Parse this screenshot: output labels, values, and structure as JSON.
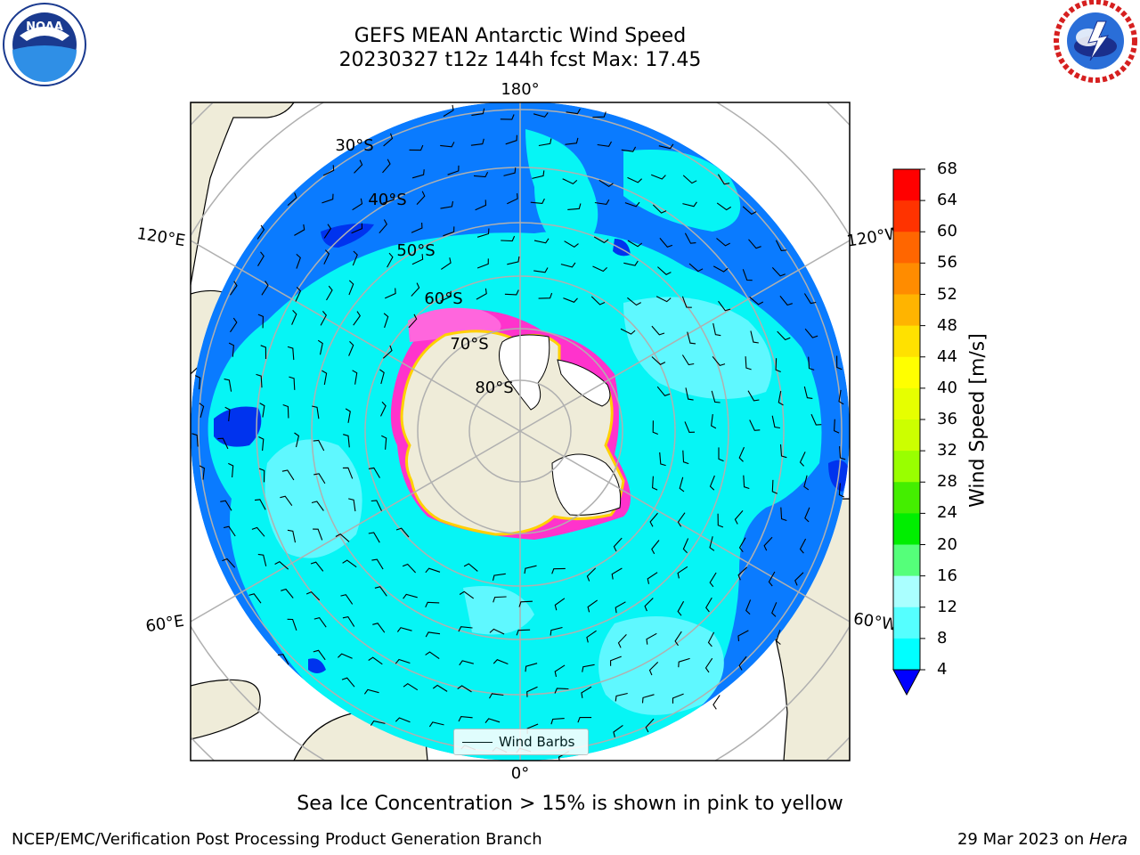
{
  "title": {
    "line1": "GEFS MEAN Antarctic Wind Speed",
    "line2": "20230327 t12z 144h fcst   Max: 17.45"
  },
  "logos": {
    "left": "NOAA",
    "right": "NATIONAL WEATHER SERVICE"
  },
  "map": {
    "projection": "south-polar-stereographic",
    "longitude_labels": {
      "top": "180°",
      "bottom": "0°",
      "left_upper": "120°E",
      "left_lower": "60°E",
      "right_upper": "120°W",
      "right_lower": "60°W"
    },
    "latitude_labels": [
      "30°S",
      "40°S",
      "50°S",
      "60°S",
      "70°S",
      "80°S"
    ],
    "colors": {
      "land": "#efecd9",
      "ocean_4_8": "#0a7bff",
      "ocean_8_12": "#06f5f5",
      "ocean_12_16": "#5ff8ff",
      "ocean_lt4": "#0033ee",
      "sea_ice": "#ff33cc",
      "ice_shelf": "#ffffff"
    }
  },
  "legend": {
    "label": "Wind Barbs"
  },
  "colorbar": {
    "title": "Wind Speed [m/s]",
    "ticks": [
      "68",
      "64",
      "60",
      "56",
      "52",
      "48",
      "44",
      "40",
      "36",
      "32",
      "28",
      "24",
      "20",
      "16",
      "12",
      "8",
      "4"
    ],
    "colors": [
      "#ff0000",
      "#ff3300",
      "#ff6600",
      "#ff8c00",
      "#ffb400",
      "#ffe100",
      "#ffff00",
      "#e6ff00",
      "#ccff00",
      "#99ff00",
      "#44ee00",
      "#00ee00",
      "#55ff7a",
      "#aaffff",
      "#55ffff",
      "#00ffff",
      "#0080ff"
    ],
    "below_color": "#0000ff"
  },
  "caption": "Sea Ice Concentration > 15% is shown in pink to yellow",
  "footer": {
    "left": "NCEP/EMC/Verification Post Processing Product Generation Branch",
    "right_date": "29 Mar 2023 on ",
    "right_host": "Hera"
  }
}
